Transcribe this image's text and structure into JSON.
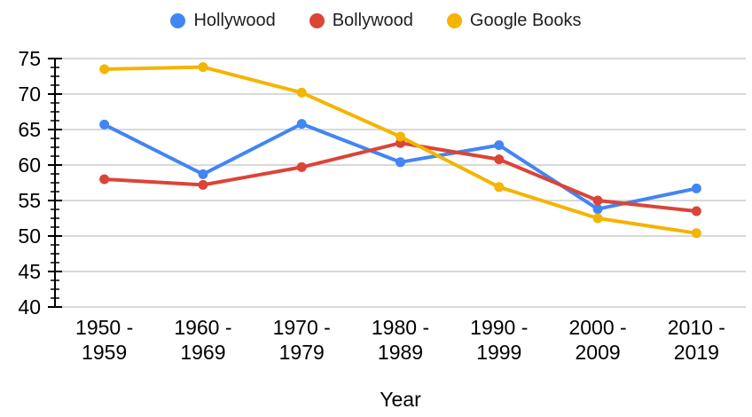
{
  "chart_data": {
    "type": "line",
    "categories": [
      "1950 -\n1959",
      "1960 -\n1969",
      "1970 -\n1979",
      "1980 -\n1989",
      "1990 -\n1999",
      "2000 -\n2009",
      "2010 -\n2019"
    ],
    "series": [
      {
        "name": "Hollywood",
        "color": "#4285F4",
        "values": [
          65.7,
          58.7,
          65.8,
          60.4,
          62.8,
          53.8,
          56.7
        ]
      },
      {
        "name": "Bollywood",
        "color": "#DB4437",
        "values": [
          58.0,
          57.2,
          59.7,
          63.1,
          60.8,
          55.0,
          53.5
        ]
      },
      {
        "name": "Google Books",
        "color": "#F4B400",
        "values": [
          73.5,
          73.8,
          70.2,
          64.0,
          56.9,
          52.5,
          50.4
        ]
      }
    ],
    "title": "",
    "xlabel": "Year",
    "ylabel": "",
    "ylim": [
      40,
      75
    ],
    "yticks": [
      40,
      45,
      50,
      55,
      60,
      65,
      70,
      75
    ],
    "ytick_major_step": 5,
    "ytick_minor_step": 1.25,
    "grid": "horizontal",
    "legend_position": "top",
    "grid_color": "#d9d9d9",
    "axis_color": "#000000"
  }
}
